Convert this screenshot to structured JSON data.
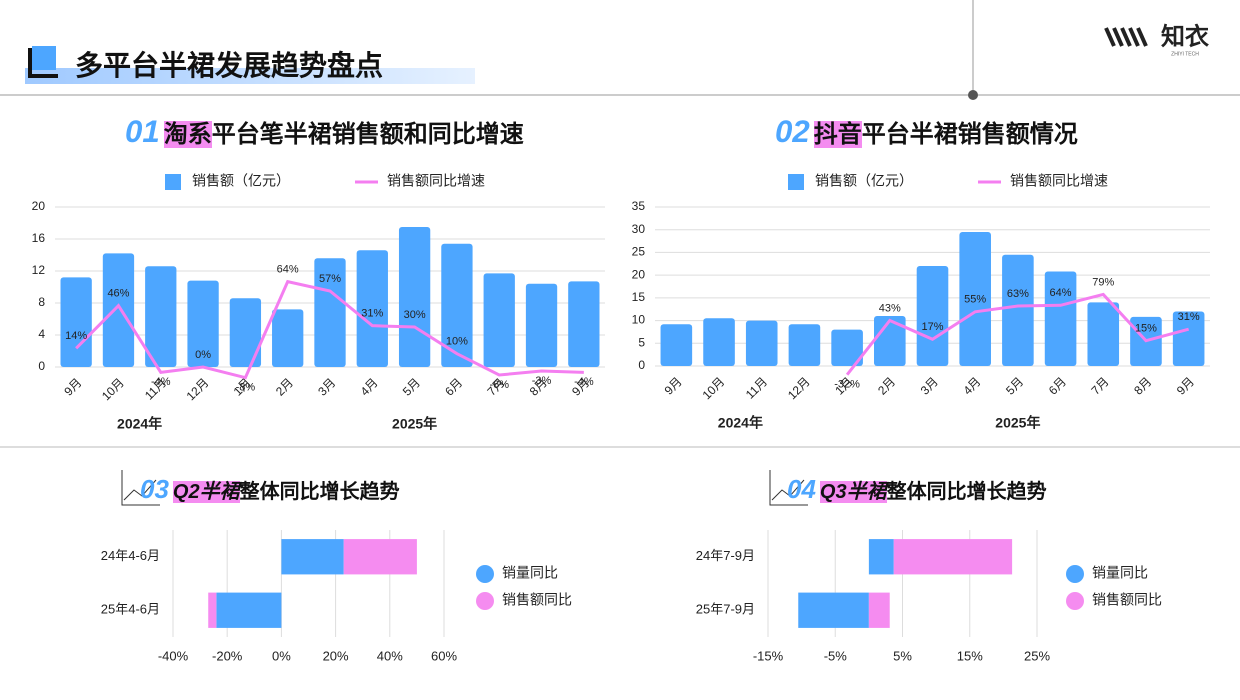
{
  "header": {
    "title": "多平台半裙发展趋势盘点",
    "logo": "知衣",
    "logo_sub": "ZHIYI TECH"
  },
  "chart_data": [
    {
      "type": "bar",
      "number": "01",
      "title_highlight": "淘系",
      "title": "平台笔半裙销售额和同比增速",
      "categories": [
        "9月",
        "10月",
        "11月",
        "12月",
        "1月",
        "2月",
        "3月",
        "4月",
        "5月",
        "6月",
        "7月",
        "8月",
        "9月"
      ],
      "x_groups": [
        "2024年",
        "2025年"
      ],
      "series": [
        {
          "name": "销售额（亿元）",
          "color": "#4da6ff",
          "values": [
            11.2,
            14.2,
            12.6,
            10.8,
            8.6,
            7.2,
            13.6,
            14.6,
            17.5,
            15.4,
            11.7,
            10.4,
            10.7
          ]
        },
        {
          "name": "销售额同比增速",
          "color": "#f47ef0",
          "type": "line",
          "axis": "y2",
          "values": [
            14,
            46,
            -4,
            0,
            -8,
            64,
            57,
            31,
            30,
            10,
            -6,
            -3,
            -4
          ],
          "value_labels": [
            "14%",
            "46%",
            "-4%",
            "0%",
            "-8%",
            "64%",
            "57%",
            "31%",
            "30%",
            "10%",
            "-6%",
            "-3%",
            "-4%"
          ]
        }
      ],
      "ylim": [
        0,
        20
      ],
      "yticks": [
        0,
        4,
        8,
        12,
        16,
        20
      ],
      "y2lim": [
        0,
        120
      ],
      "grid": true
    },
    {
      "type": "bar",
      "number": "02",
      "title_highlight": "抖音",
      "title": "平台半裙销售额情况",
      "categories": [
        "9月",
        "10月",
        "11月",
        "12月",
        "1月",
        "2月",
        "3月",
        "4月",
        "5月",
        "6月",
        "7月",
        "8月",
        "9月"
      ],
      "x_groups": [
        "2024年",
        "2025年"
      ],
      "series": [
        {
          "name": "销售额（亿元）",
          "color": "#4da6ff",
          "values": [
            9.2,
            10.5,
            10,
            9.2,
            8,
            11,
            22,
            29.5,
            24.5,
            20.8,
            14,
            10.8,
            12
          ]
        },
        {
          "name": "销售额同比增速",
          "color": "#f47ef0",
          "type": "line",
          "axis": "y2",
          "values": [
            null,
            null,
            null,
            null,
            -32,
            43,
            17,
            55,
            63,
            64,
            79,
            15,
            31
          ],
          "value_labels": [
            null,
            null,
            null,
            null,
            "-32%",
            "43%",
            "17%",
            "55%",
            "63%",
            "64%",
            "79%",
            "15%",
            "31%"
          ]
        }
      ],
      "ylim": [
        0,
        35
      ],
      "yticks": [
        0,
        5,
        10,
        15,
        20,
        25,
        30,
        35
      ],
      "y2lim": [
        -20,
        200
      ],
      "grid": true
    },
    {
      "type": "barh",
      "number": "03",
      "title_highlight": "Q2半裙",
      "title": "整体同比增长趋势",
      "categories": [
        "24年4-6月",
        "25年4-6月"
      ],
      "series": [
        {
          "name": "销量同比",
          "color": "#4da6ff",
          "values": [
            23,
            -24
          ]
        },
        {
          "name": "销售额同比",
          "color": "#f58cf0",
          "values": [
            27,
            -3
          ]
        }
      ],
      "xlim": [
        -40,
        60
      ],
      "xticks": [
        {
          "value": -40,
          "label": "-40%"
        },
        {
          "value": -20,
          "label": "-20%"
        },
        {
          "value": 0,
          "label": "0%"
        },
        {
          "value": 20,
          "label": "20%"
        },
        {
          "value": 40,
          "label": "40%"
        },
        {
          "value": 60,
          "label": "60%"
        }
      ],
      "grid": true
    },
    {
      "type": "barh",
      "number": "04",
      "title_highlight": "Q3半裙",
      "title": "整体同比增长趋势",
      "categories": [
        "24年7-9月",
        "25年7-9月"
      ],
      "series": [
        {
          "name": "销量同比",
          "color": "#4da6ff",
          "values": [
            3.7,
            -10.5
          ]
        },
        {
          "name": "销售额同比",
          "color": "#f58cf0",
          "values": [
            17.6,
            3.1
          ]
        }
      ],
      "xlim": [
        -15,
        25
      ],
      "xticks": [
        {
          "value": -15,
          "label": "-15%"
        },
        {
          "value": -5,
          "label": "-5%"
        },
        {
          "value": 5,
          "label": "5%"
        },
        {
          "value": 15,
          "label": "15%"
        },
        {
          "value": 25,
          "label": "25%"
        }
      ],
      "grid": true
    }
  ]
}
